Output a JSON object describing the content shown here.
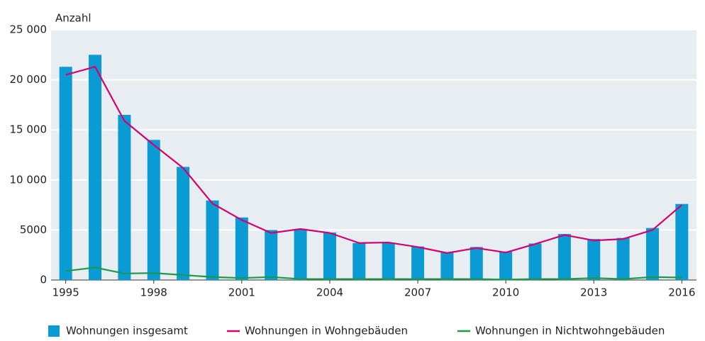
{
  "chart_data": {
    "type": "bar_line",
    "y_axis_label": "Anzahl",
    "categories": [
      "1995",
      null,
      null,
      "1998",
      null,
      null,
      "2001",
      null,
      null,
      "2004",
      null,
      null,
      "2007",
      null,
      null,
      "2010",
      null,
      null,
      "2013",
      null,
      null,
      "2016"
    ],
    "series": [
      {
        "name": "Wohnungen insgesamt",
        "type": "bar",
        "color": "#0a9bd4",
        "values": [
          21300,
          22500,
          16500,
          14000,
          11300,
          7950,
          6250,
          5000,
          5100,
          4750,
          3700,
          3750,
          3350,
          2750,
          3300,
          2850,
          3650,
          4600,
          4100,
          4200,
          5200,
          7600
        ]
      },
      {
        "name": "Wohnungen in Wohngebäuden",
        "type": "line",
        "color": "#d4006f",
        "values": [
          20500,
          21300,
          15900,
          13500,
          11200,
          7650,
          6000,
          4700,
          5100,
          4700,
          3700,
          3750,
          3300,
          2700,
          3200,
          2750,
          3600,
          4500,
          3950,
          4100,
          5000,
          7500
        ]
      },
      {
        "name": "Wohnungen in Nichtwohngebäuden",
        "type": "line",
        "color": "#1a9a4a",
        "values": [
          900,
          1250,
          650,
          700,
          500,
          300,
          200,
          300,
          100,
          100,
          100,
          100,
          100,
          100,
          100,
          50,
          100,
          100,
          200,
          100,
          300,
          250
        ]
      }
    ],
    "ylim": [
      0,
      25000
    ],
    "yticks": [
      0,
      5000,
      {
        "value": 10000,
        "label": "10 000"
      },
      {
        "value": 15000,
        "label": "15 000"
      },
      {
        "value": 20000,
        "label": "20 000"
      },
      {
        "value": 25000,
        "label": "25 000"
      }
    ],
    "grid": true
  }
}
